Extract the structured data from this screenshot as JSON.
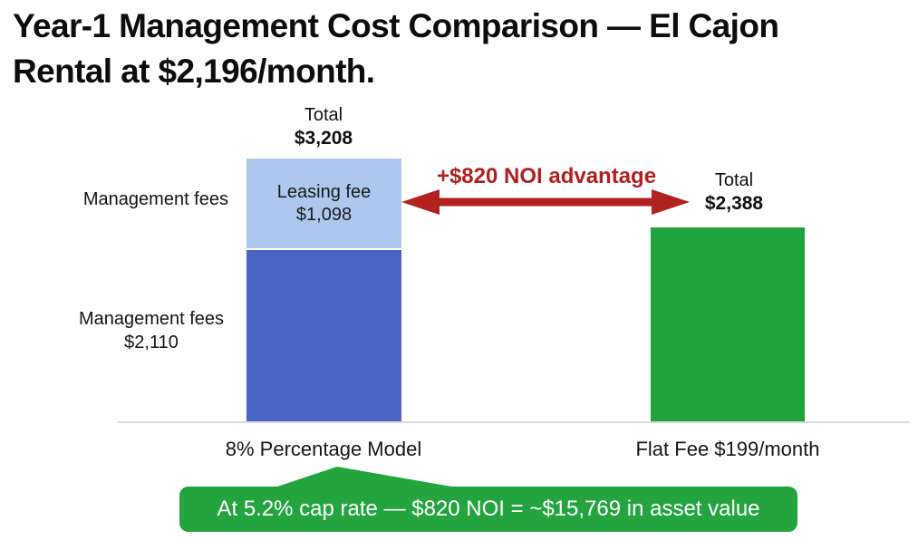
{
  "title": {
    "text": "Year-1 Management Cost Comparison — El Cajon Rental at $2,196/month.",
    "line1": "Year-1 Management Cost Comparison — El Cajon",
    "line2": "Rental at $2,196/month."
  },
  "chart_data": {
    "type": "bar",
    "subtype": "stacked-comparison",
    "title": "Year-1 Management Cost Comparison — El Cajon Rental at $2,196/month.",
    "categories": [
      "8% Percentage Model",
      "Flat Fee $199/month"
    ],
    "series": [
      {
        "name": "Management fees",
        "values": [
          2110,
          0
        ],
        "color": "#4a64c4"
      },
      {
        "name": "Leasing fee",
        "values": [
          1098,
          0
        ],
        "color": "#aec7ee"
      },
      {
        "name": "Flat fee",
        "values": [
          0,
          2388
        ],
        "color": "#1fa33c"
      }
    ],
    "totals": [
      3208,
      2388
    ],
    "ylim": [
      0,
      3208
    ],
    "grid": false,
    "legend": "none",
    "annotations": [
      {
        "type": "double-arrow",
        "text": "+$820 NOI advantage",
        "color": "#b32020",
        "between": [
          "8% Percentage Model",
          "Flat Fee $199/month"
        ]
      },
      {
        "type": "callout",
        "text": "At 5.2% cap rate — $820 NOI = ~$15,769 in asset value",
        "color": "#24a43f",
        "points_to": "8% Percentage Model"
      }
    ]
  },
  "left_bar": {
    "total_label": "Total",
    "total_value": "$3,208",
    "segment_top_label": "Leasing fee",
    "segment_top_value": "$1,098",
    "side_label_top": "Management fees",
    "side_label_bottom": "Management fees",
    "side_value_bottom": "$2,110",
    "axis_label": "8% Percentage Model"
  },
  "right_bar": {
    "total_label": "Total",
    "total_value": "$2,388",
    "axis_label": "Flat Fee $199/month"
  },
  "arrow_annotation": {
    "label": "+$820 NOI advantage"
  },
  "callout": {
    "label": "At 5.2% cap rate — $820 NOI = ~$15,769 in asset value"
  },
  "colors": {
    "management_fee_blue": "#4a64c4",
    "leasing_fee_light_blue": "#aec7ee",
    "flat_fee_green": "#1fa33c",
    "callout_green": "#24a43f",
    "arrow_red": "#b32020",
    "axis_gray": "#d9d9d9",
    "text_black": "#141414"
  }
}
